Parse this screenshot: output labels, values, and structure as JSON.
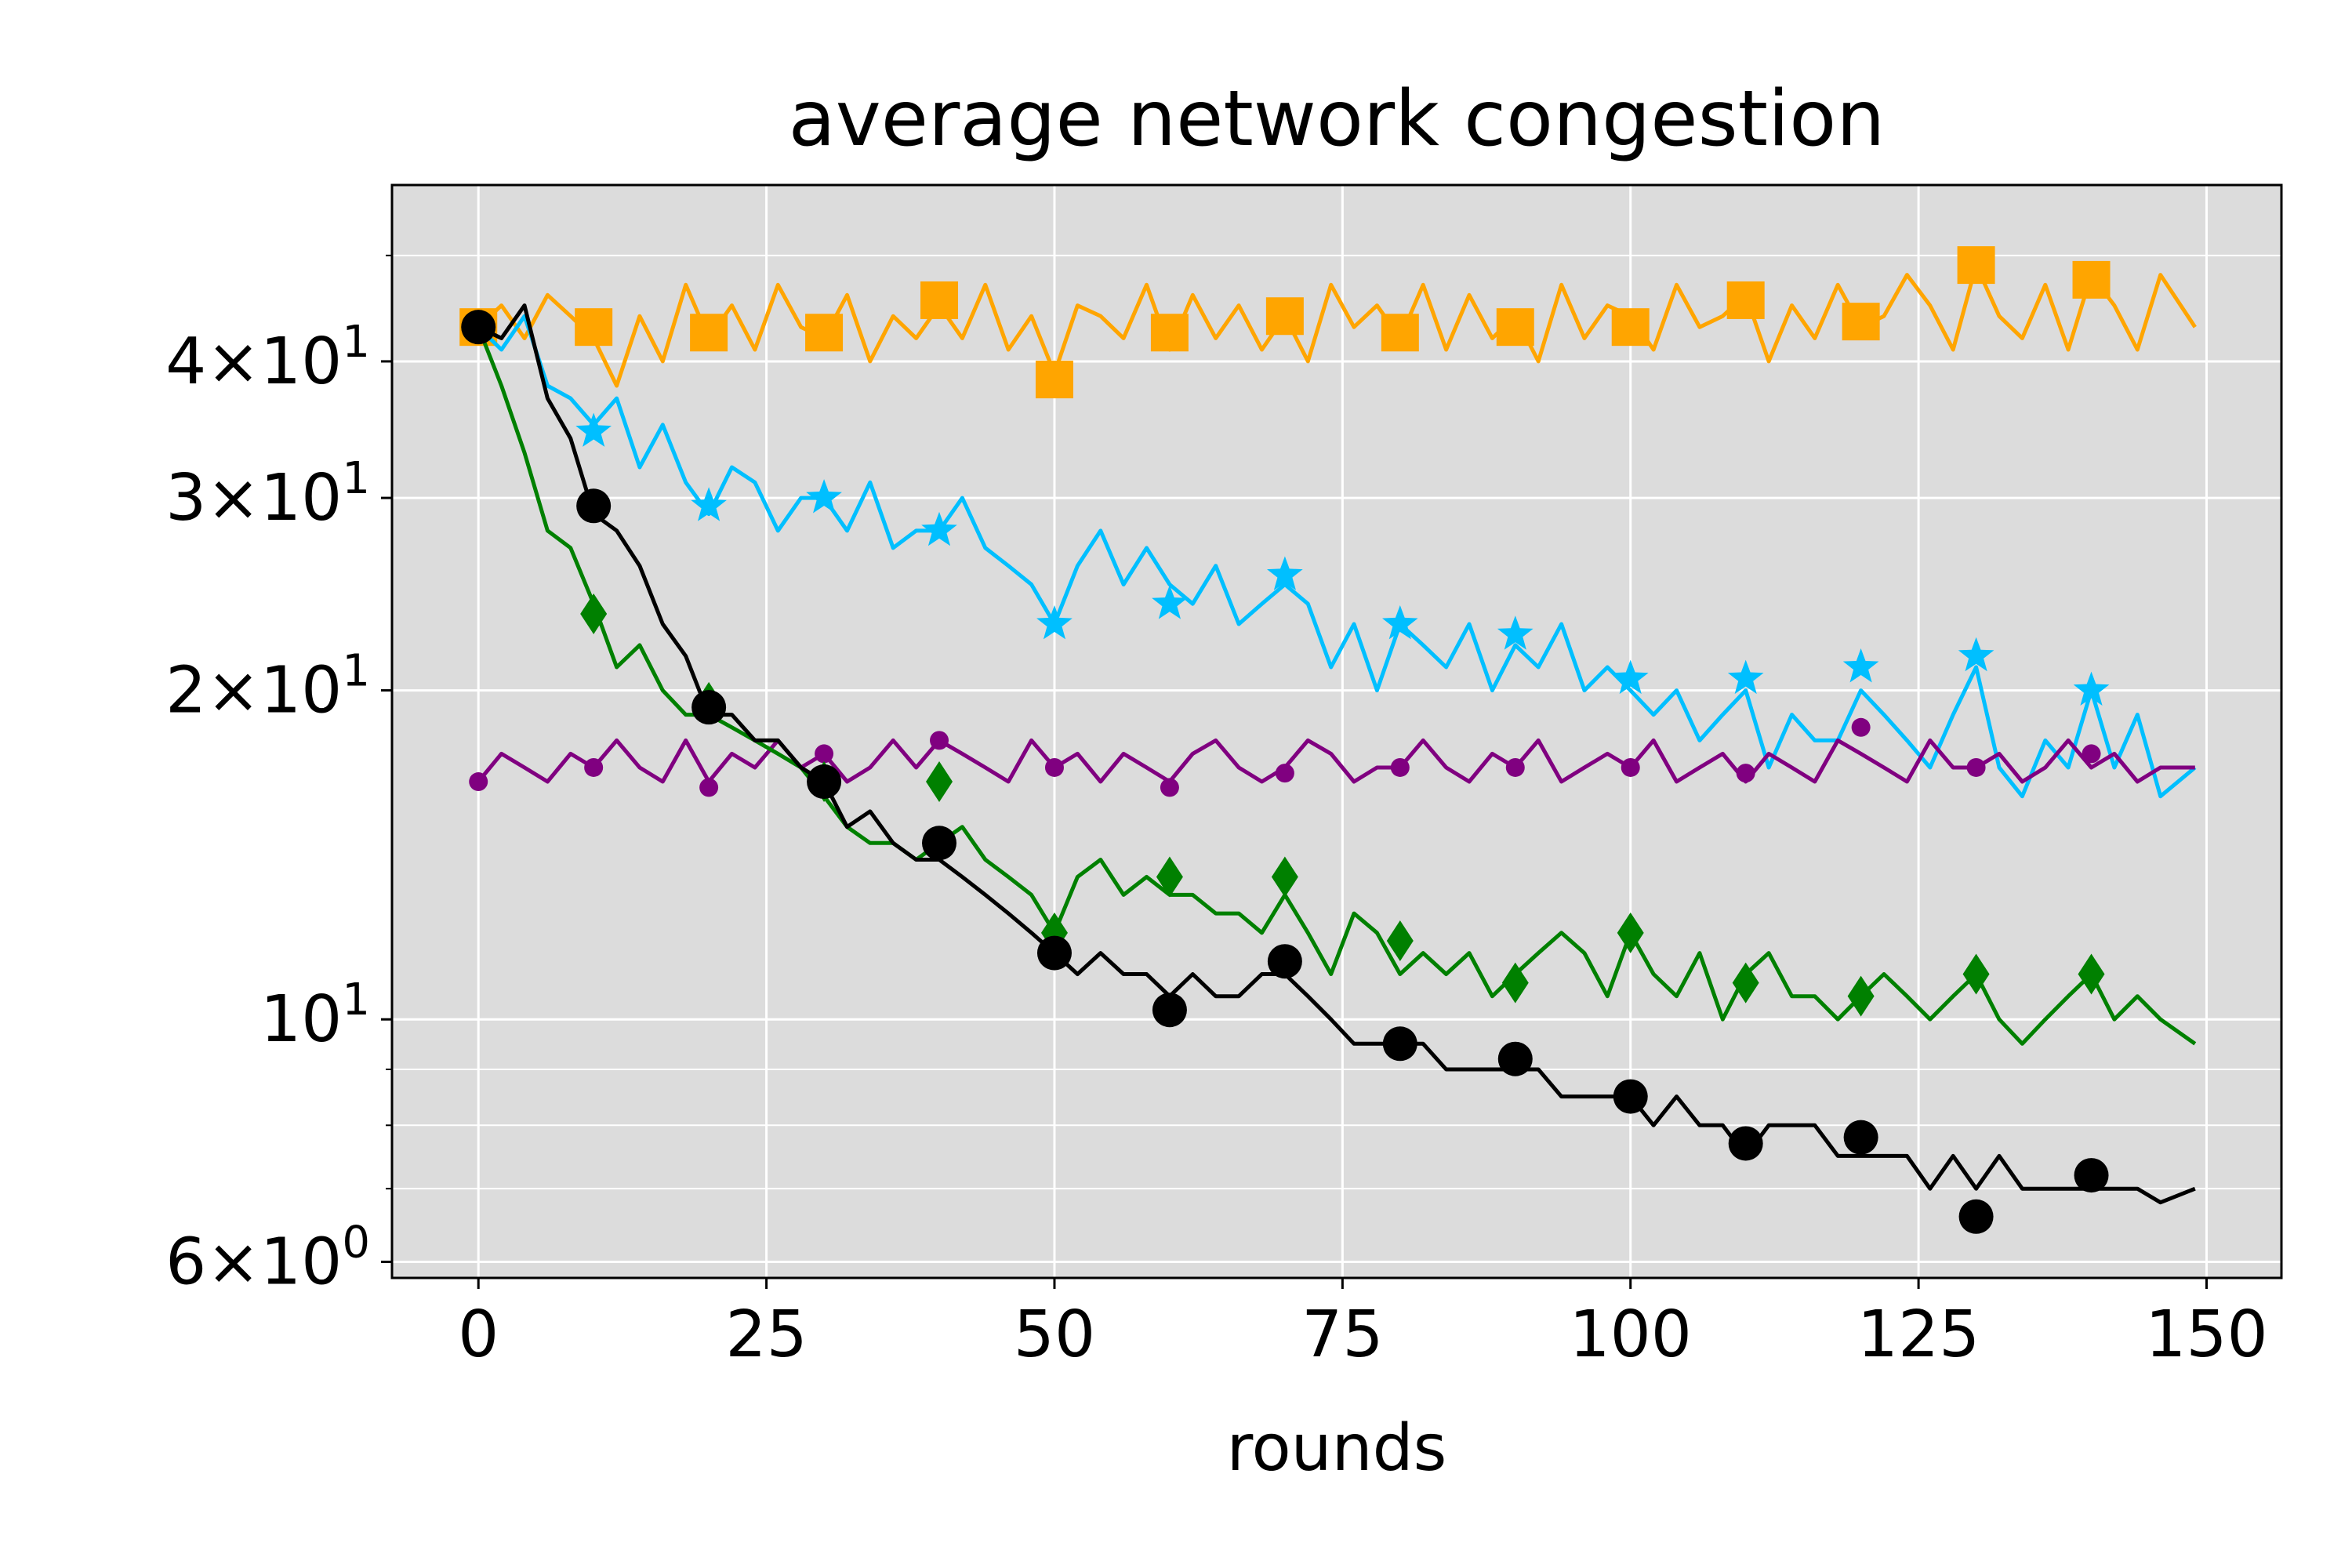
{
  "chart_data": {
    "type": "line",
    "title": "average network congestion",
    "xlabel": "rounds",
    "ylabel": "",
    "x_ticks": [
      0,
      25,
      50,
      75,
      100,
      125,
      150
    ],
    "xlim": [
      -7.5,
      156.5
    ],
    "y_scale": "log",
    "ylim": [
      5.8,
      58
    ],
    "y_major_ticks": [
      {
        "value": 6,
        "mantissa": "6",
        "exp": "0"
      },
      {
        "value": 10,
        "mantissa": "",
        "exp": "1"
      },
      {
        "value": 20,
        "mantissa": "2",
        "exp": "1"
      },
      {
        "value": 30,
        "mantissa": "3",
        "exp": "1"
      },
      {
        "value": 40,
        "mantissa": "4",
        "exp": "1"
      }
    ],
    "y_minor_ticks": [
      7,
      8,
      9,
      50
    ],
    "grid": true,
    "background": "#dcdcdc",
    "series": [
      {
        "color": "#ffa500",
        "marker": "square",
        "x": [
          0,
          2,
          4,
          6,
          8,
          10,
          12,
          14,
          16,
          18,
          20,
          22,
          24,
          26,
          28,
          30,
          32,
          34,
          36,
          38,
          40,
          42,
          44,
          46,
          48,
          50,
          52,
          54,
          56,
          58,
          60,
          62,
          64,
          66,
          68,
          70,
          72,
          74,
          76,
          78,
          80,
          82,
          84,
          86,
          88,
          90,
          92,
          94,
          96,
          98,
          100,
          102,
          104,
          106,
          108,
          110,
          112,
          114,
          116,
          118,
          120,
          122,
          124,
          126,
          128,
          130,
          132,
          134,
          136,
          138,
          140,
          142,
          144,
          146,
          149
        ],
        "y": [
          43,
          45,
          42,
          46,
          44,
          42,
          38,
          44,
          40,
          47,
          42,
          45,
          41,
          47,
          43,
          42,
          46,
          40,
          44,
          42,
          45,
          42,
          47,
          41,
          44,
          39,
          45,
          44,
          42,
          47,
          41,
          46,
          42,
          45,
          41,
          44,
          40,
          47,
          43,
          45,
          42,
          47,
          41,
          46,
          42,
          44,
          40,
          47,
          42,
          45,
          44,
          41,
          47,
          43,
          44,
          46,
          40,
          45,
          42,
          47,
          43,
          44,
          48,
          45,
          41,
          49,
          44,
          42,
          47,
          41,
          48,
          45,
          41,
          48,
          43
        ],
        "marker_x": [
          0,
          10,
          20,
          30,
          40,
          50,
          60,
          70,
          80,
          90,
          100,
          110,
          120,
          130,
          140
        ],
        "marker_y": [
          43,
          43,
          42.5,
          42.5,
          45.5,
          38.5,
          42.5,
          44,
          42.5,
          43,
          43,
          45.5,
          43.5,
          49,
          47.5
        ]
      },
      {
        "color": "#00bfff",
        "marker": "star",
        "x": [
          0,
          2,
          4,
          6,
          8,
          10,
          12,
          14,
          16,
          18,
          20,
          22,
          24,
          26,
          28,
          30,
          32,
          34,
          36,
          38,
          40,
          42,
          44,
          46,
          48,
          50,
          52,
          54,
          56,
          58,
          60,
          62,
          64,
          66,
          68,
          70,
          72,
          74,
          76,
          78,
          80,
          82,
          84,
          86,
          88,
          90,
          92,
          94,
          96,
          98,
          100,
          102,
          104,
          106,
          108,
          110,
          112,
          114,
          116,
          118,
          120,
          122,
          124,
          126,
          128,
          130,
          132,
          134,
          136,
          138,
          140,
          142,
          144,
          146,
          149
        ],
        "y": [
          43,
          41,
          44,
          38,
          37,
          35,
          37,
          32,
          35,
          31,
          29,
          32,
          31,
          28,
          30,
          30,
          28,
          31,
          27,
          28,
          28,
          30,
          27,
          26,
          25,
          23,
          26,
          28,
          25,
          27,
          25,
          24,
          26,
          23,
          24,
          25,
          24,
          21,
          23,
          20,
          23,
          22,
          21,
          23,
          20,
          22,
          21,
          23,
          20,
          21,
          20,
          19,
          20,
          18,
          19,
          20,
          17,
          19,
          18,
          18,
          20,
          19,
          18,
          17,
          19,
          21,
          17,
          16,
          18,
          17,
          20,
          17,
          19,
          16,
          17
        ],
        "marker_x": [
          10,
          20,
          30,
          40,
          50,
          60,
          70,
          80,
          90,
          100,
          110,
          120,
          130,
          140
        ],
        "marker_y": [
          34.5,
          29.5,
          30,
          28,
          23,
          24,
          25.5,
          23,
          22.5,
          20.5,
          20.5,
          21,
          21.5,
          20
        ]
      },
      {
        "color": "#800080",
        "marker": "point",
        "x": [
          0,
          2,
          4,
          6,
          8,
          10,
          12,
          14,
          16,
          18,
          20,
          22,
          24,
          26,
          28,
          30,
          32,
          34,
          36,
          38,
          40,
          42,
          44,
          46,
          48,
          50,
          52,
          54,
          56,
          58,
          60,
          62,
          64,
          66,
          68,
          70,
          72,
          74,
          76,
          78,
          80,
          82,
          84,
          86,
          88,
          90,
          92,
          94,
          96,
          98,
          100,
          102,
          104,
          106,
          108,
          110,
          112,
          114,
          116,
          118,
          120,
          122,
          124,
          126,
          128,
          130,
          132,
          134,
          136,
          138,
          140,
          142,
          144,
          146,
          149
        ],
        "y": [
          16.5,
          17.5,
          17,
          16.5,
          17.5,
          17,
          18,
          17,
          16.5,
          18,
          16.5,
          17.5,
          17,
          18,
          17,
          17.5,
          16.5,
          17,
          18,
          17,
          18,
          17.5,
          17,
          16.5,
          18,
          17,
          17.5,
          16.5,
          17.5,
          17,
          16.5,
          17.5,
          18,
          17,
          16.5,
          17,
          18,
          17.5,
          16.5,
          17,
          17,
          18,
          17,
          16.5,
          17.5,
          17,
          18,
          16.5,
          17,
          17.5,
          17,
          18,
          16.5,
          17,
          17.5,
          16.5,
          17.5,
          17,
          16.5,
          18,
          17.5,
          17,
          16.5,
          18,
          17,
          17,
          17.5,
          16.5,
          17,
          18,
          17,
          17.5,
          16.5,
          17,
          17
        ],
        "marker_x": [
          0,
          10,
          20,
          30,
          40,
          50,
          60,
          70,
          80,
          90,
          100,
          110,
          120,
          130,
          140
        ],
        "marker_y": [
          16.5,
          17,
          16.3,
          17.5,
          18,
          17,
          16.3,
          16.8,
          17,
          17,
          17,
          16.8,
          18.5,
          17,
          17.5
        ]
      },
      {
        "color": "#008000",
        "marker": "diamond",
        "x": [
          0,
          2,
          4,
          6,
          8,
          10,
          12,
          14,
          16,
          18,
          20,
          22,
          24,
          26,
          28,
          30,
          32,
          34,
          36,
          38,
          40,
          42,
          44,
          46,
          48,
          50,
          52,
          54,
          56,
          58,
          60,
          62,
          64,
          66,
          68,
          70,
          72,
          74,
          76,
          78,
          80,
          82,
          84,
          86,
          88,
          90,
          92,
          94,
          96,
          98,
          100,
          102,
          104,
          106,
          108,
          110,
          112,
          114,
          116,
          118,
          120,
          122,
          124,
          126,
          128,
          130,
          132,
          134,
          136,
          138,
          140,
          142,
          144,
          146,
          149
        ],
        "y": [
          43,
          38,
          33,
          28,
          27,
          24,
          21,
          22,
          20,
          19,
          19,
          18.5,
          18,
          17.5,
          17,
          16,
          15,
          14.5,
          14.5,
          14,
          14.5,
          15,
          14,
          13.5,
          13,
          12,
          13.5,
          14,
          13,
          13.5,
          13,
          13,
          12.5,
          12.5,
          12,
          13,
          12,
          11,
          12.5,
          12,
          11,
          11.5,
          11,
          11.5,
          10.5,
          11,
          11.5,
          12,
          11.5,
          10.5,
          12,
          11,
          10.5,
          11.5,
          10,
          11,
          11.5,
          10.5,
          10.5,
          10,
          10.5,
          11,
          10.5,
          10,
          10.5,
          11,
          10,
          9.5,
          10,
          10.5,
          11,
          10,
          10.5,
          10,
          9.5
        ],
        "marker_x": [
          10,
          20,
          30,
          40,
          50,
          60,
          70,
          80,
          90,
          100,
          110,
          120,
          130,
          140
        ],
        "marker_y": [
          23.5,
          19.5,
          16.5,
          16.5,
          12,
          13.5,
          13.5,
          11.8,
          10.8,
          12,
          10.8,
          10.5,
          11,
          11
        ]
      },
      {
        "color": "#000000",
        "marker": "circle",
        "x": [
          0,
          2,
          4,
          6,
          8,
          10,
          12,
          14,
          16,
          18,
          20,
          22,
          24,
          26,
          28,
          30,
          32,
          34,
          36,
          38,
          40,
          42,
          44,
          46,
          48,
          50,
          52,
          54,
          56,
          58,
          60,
          62,
          64,
          66,
          68,
          70,
          72,
          74,
          76,
          78,
          80,
          82,
          84,
          86,
          88,
          90,
          92,
          94,
          96,
          98,
          100,
          102,
          104,
          106,
          108,
          110,
          112,
          114,
          116,
          118,
          120,
          122,
          124,
          126,
          128,
          130,
          132,
          134,
          136,
          138,
          140,
          142,
          144,
          146,
          149
        ],
        "y": [
          43,
          42,
          45,
          37,
          34,
          29,
          28,
          26,
          23,
          21.5,
          19,
          19,
          18,
          18,
          17,
          16.5,
          15,
          15.5,
          14.5,
          14,
          14,
          13.5,
          13,
          12.5,
          12,
          11.5,
          11,
          11.5,
          11,
          11,
          10.5,
          11,
          10.5,
          10.5,
          11,
          11,
          10.5,
          10,
          9.5,
          9.5,
          9.5,
          9.5,
          9,
          9,
          9,
          9,
          9,
          8.5,
          8.5,
          8.5,
          8.5,
          8,
          8.5,
          8,
          8,
          7.5,
          8,
          8,
          8,
          7.5,
          7.5,
          7.5,
          7.5,
          7,
          7.5,
          7,
          7.5,
          7,
          7,
          7,
          7,
          7,
          7,
          6.8,
          7
        ],
        "marker_x": [
          0,
          10,
          20,
          30,
          40,
          50,
          60,
          70,
          80,
          90,
          100,
          110,
          120,
          130,
          140
        ],
        "marker_y": [
          43,
          29.5,
          19.3,
          16.5,
          14.5,
          11.5,
          10.2,
          11.3,
          9.5,
          9.2,
          8.5,
          7.7,
          7.8,
          6.6,
          7.2
        ]
      }
    ]
  }
}
